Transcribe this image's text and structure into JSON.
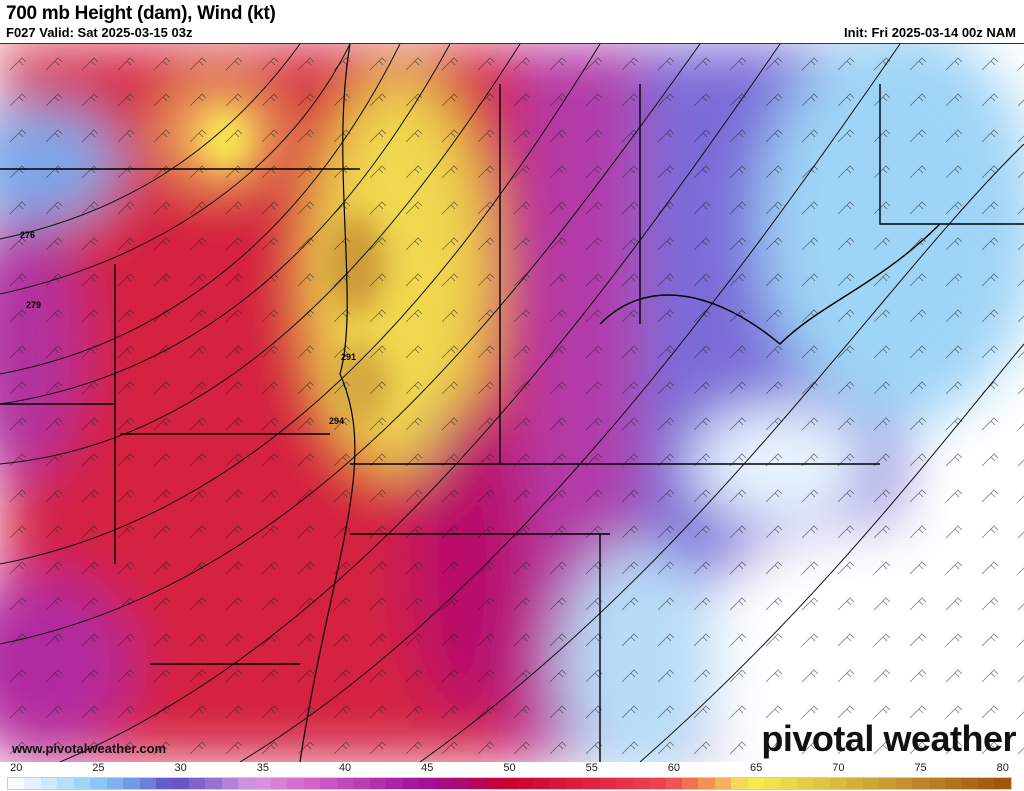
{
  "header": {
    "title": "700 mb Height (dam), Wind (kt)",
    "valid": "F027 Valid: Sat 2025-03-15 03z",
    "init": "Init: Fri 2025-03-14 00z NAM"
  },
  "map": {
    "contour_labels": [
      "276",
      "279",
      "291",
      "294"
    ],
    "url": "www.pivotalweather.com",
    "logo": "pivotal weather"
  },
  "colorbar": {
    "min": 20,
    "max": 81,
    "labels": [
      "20",
      "25",
      "30",
      "35",
      "40",
      "45",
      "50",
      "55",
      "60",
      "65",
      "70",
      "75",
      "80"
    ],
    "stops": [
      [
        20,
        "#ffffff"
      ],
      [
        22,
        "#dceefd"
      ],
      [
        25,
        "#8fd0f7"
      ],
      [
        27,
        "#78a8ea"
      ],
      [
        29,
        "#6a70d6"
      ],
      [
        30,
        "#5c4cc4"
      ],
      [
        33,
        "#a47ad6"
      ],
      [
        35,
        "#dc96e0"
      ],
      [
        38,
        "#d468cc"
      ],
      [
        42,
        "#b836ae"
      ],
      [
        45,
        "#a0129a"
      ],
      [
        48,
        "#b0086a"
      ],
      [
        50,
        "#c8002e"
      ],
      [
        55,
        "#dc2040"
      ],
      [
        60,
        "#ee4650"
      ],
      [
        62,
        "#f2804e"
      ],
      [
        64,
        "#f8c060"
      ],
      [
        65,
        "#f8f050"
      ],
      [
        70,
        "#dcc040"
      ],
      [
        75,
        "#c08c2c"
      ],
      [
        81,
        "#9c5008"
      ]
    ]
  }
}
